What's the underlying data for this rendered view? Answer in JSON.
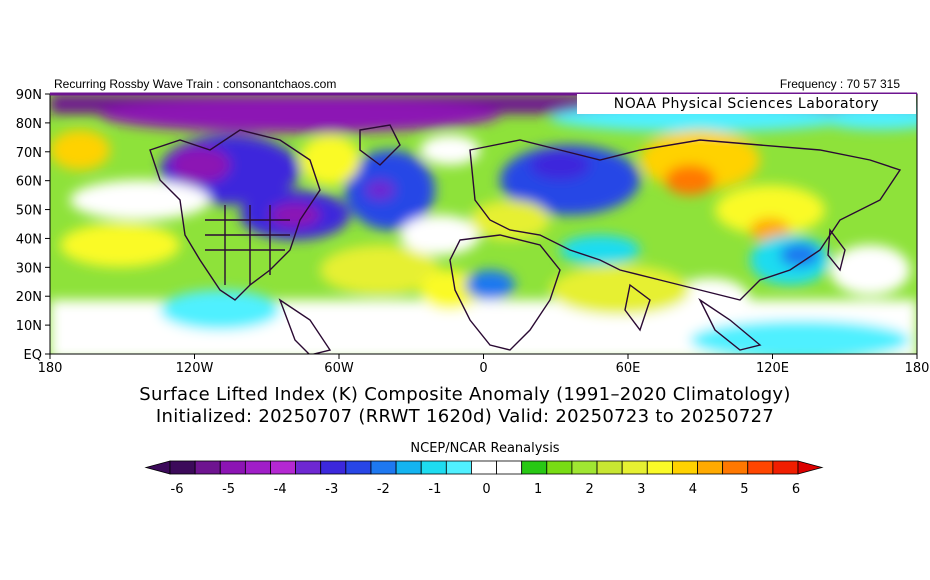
{
  "header": {
    "left": "Recurring Rossby Wave Train : consonantchaos.com",
    "right": "Frequency : 70 57 315"
  },
  "map": {
    "lab_label": "NOAA Physical Sciences Laboratory",
    "lat_labels": [
      "90N",
      "80N",
      "70N",
      "60N",
      "50N",
      "40N",
      "30N",
      "20N",
      "10N",
      "EQ"
    ],
    "lon_labels": [
      "180",
      "120W",
      "60W",
      "0",
      "60E",
      "120E",
      "180"
    ]
  },
  "title": {
    "line1": "Surface Lifted Index (K) Composite Anomaly (1991–2020 Climatology)",
    "line2": "Initialized: 20250707 (RRWT 1620d) Valid: 20250723 to 20250727"
  },
  "source": "NCEP/NCAR Reanalysis",
  "colorbar": {
    "labels": [
      "-6",
      "-5",
      "-4",
      "-3",
      "-2",
      "-1",
      "0",
      "1",
      "2",
      "3",
      "4",
      "5",
      "6"
    ],
    "colors": [
      "#3c0a5a",
      "#6e1490",
      "#8c14b4",
      "#a01ec8",
      "#b428d2",
      "#6e28d2",
      "#3c28dc",
      "#2846e6",
      "#1e78f0",
      "#14b4f0",
      "#1edcf0",
      "#50f0ff",
      "#ffffff",
      "#ffffff",
      "#28c814",
      "#78dc14",
      "#a0e632",
      "#c8e632",
      "#e6f032",
      "#fafa28",
      "#ffd200",
      "#ffaa00",
      "#ff7800",
      "#ff4600",
      "#f01e00"
    ],
    "left_color": "#3c0a5a",
    "right_color": "#dc0000"
  }
}
